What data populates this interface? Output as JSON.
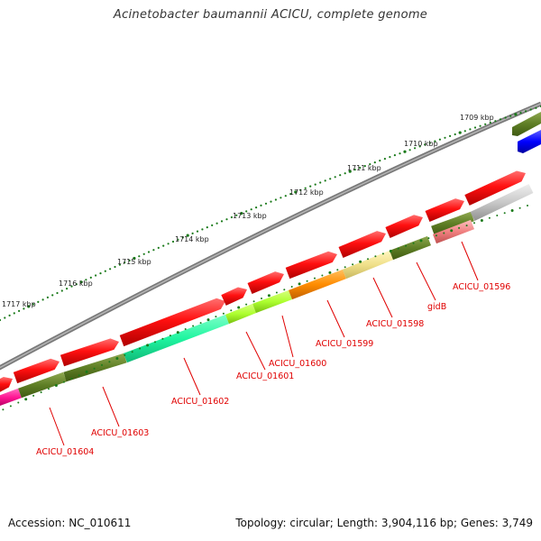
{
  "title": "Acinetobacter baumannii ACICU, complete genome",
  "footer": {
    "accession": "Accession: NC_010611",
    "summary": "Topology: circular; Length: 3,904,116 bp; Genes: 3,749"
  },
  "ticks": [
    "1709 kbp",
    "1710 kbp",
    "1711 kbp",
    "1712 kbp",
    "1713 kbp",
    "1714 kbp",
    "1715 kbp",
    "1716 kbp",
    "1717 kbp"
  ],
  "genes": [
    "ACICU_01596",
    "gidB",
    "ACICU_01598",
    "ACICU_01599",
    "ACICU_01600",
    "ACICU_01601",
    "ACICU_01602",
    "ACICU_01603",
    "ACICU_01604"
  ],
  "colors": {
    "cds": "#ff1a1a",
    "backbone": "#7a7a7a",
    "tick": "#1a7a1a",
    "label": "#e00000"
  }
}
